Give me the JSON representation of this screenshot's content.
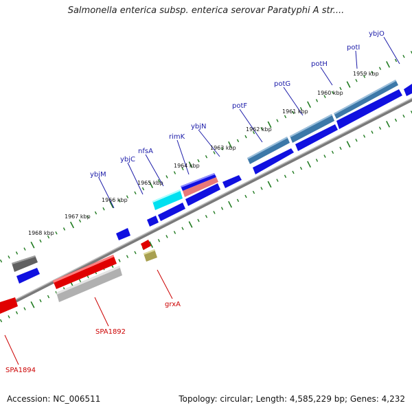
{
  "title": "Salmonella enterica subsp. enterica serovar Paratyphi A str....",
  "footer": {
    "accession": "Accession: NC_006511",
    "summary": "Topology: circular; Length: 4,585,229 bp; Genes: 4,232"
  },
  "colors": {
    "backbone": "#8a8a8a",
    "tick": "#1f7a1f",
    "plus_gene": "#1010e0",
    "minus_gene": "#e00000",
    "plus_label": "#1a1aa8",
    "minus_label": "#cc0000",
    "steelblue_gene": "#3c78a8",
    "cyan_gene": "#00e0f0",
    "pink_gene": "#e87878",
    "gray_gene": "#606060",
    "lightgray_gene": "#b8b8b8",
    "olive_gene": "#a8a050"
  },
  "scale_labels": [
    "1959 kbp",
    "1960 kbp",
    "1961 kbp",
    "1962 kbp",
    "1963 kbp",
    "1964 kbp",
    "1965 kbp",
    "1966 kbp",
    "1967 kbp",
    "1968 kbp"
  ],
  "gene_labels_top": [
    "ybjO",
    "potI",
    "potH",
    "potG",
    "potF",
    "ybjN",
    "rimK",
    "nfsA",
    "ybjC",
    "ybjM"
  ],
  "gene_labels_bottom": [
    "grxA",
    "SPA1892",
    "SPA1894"
  ]
}
